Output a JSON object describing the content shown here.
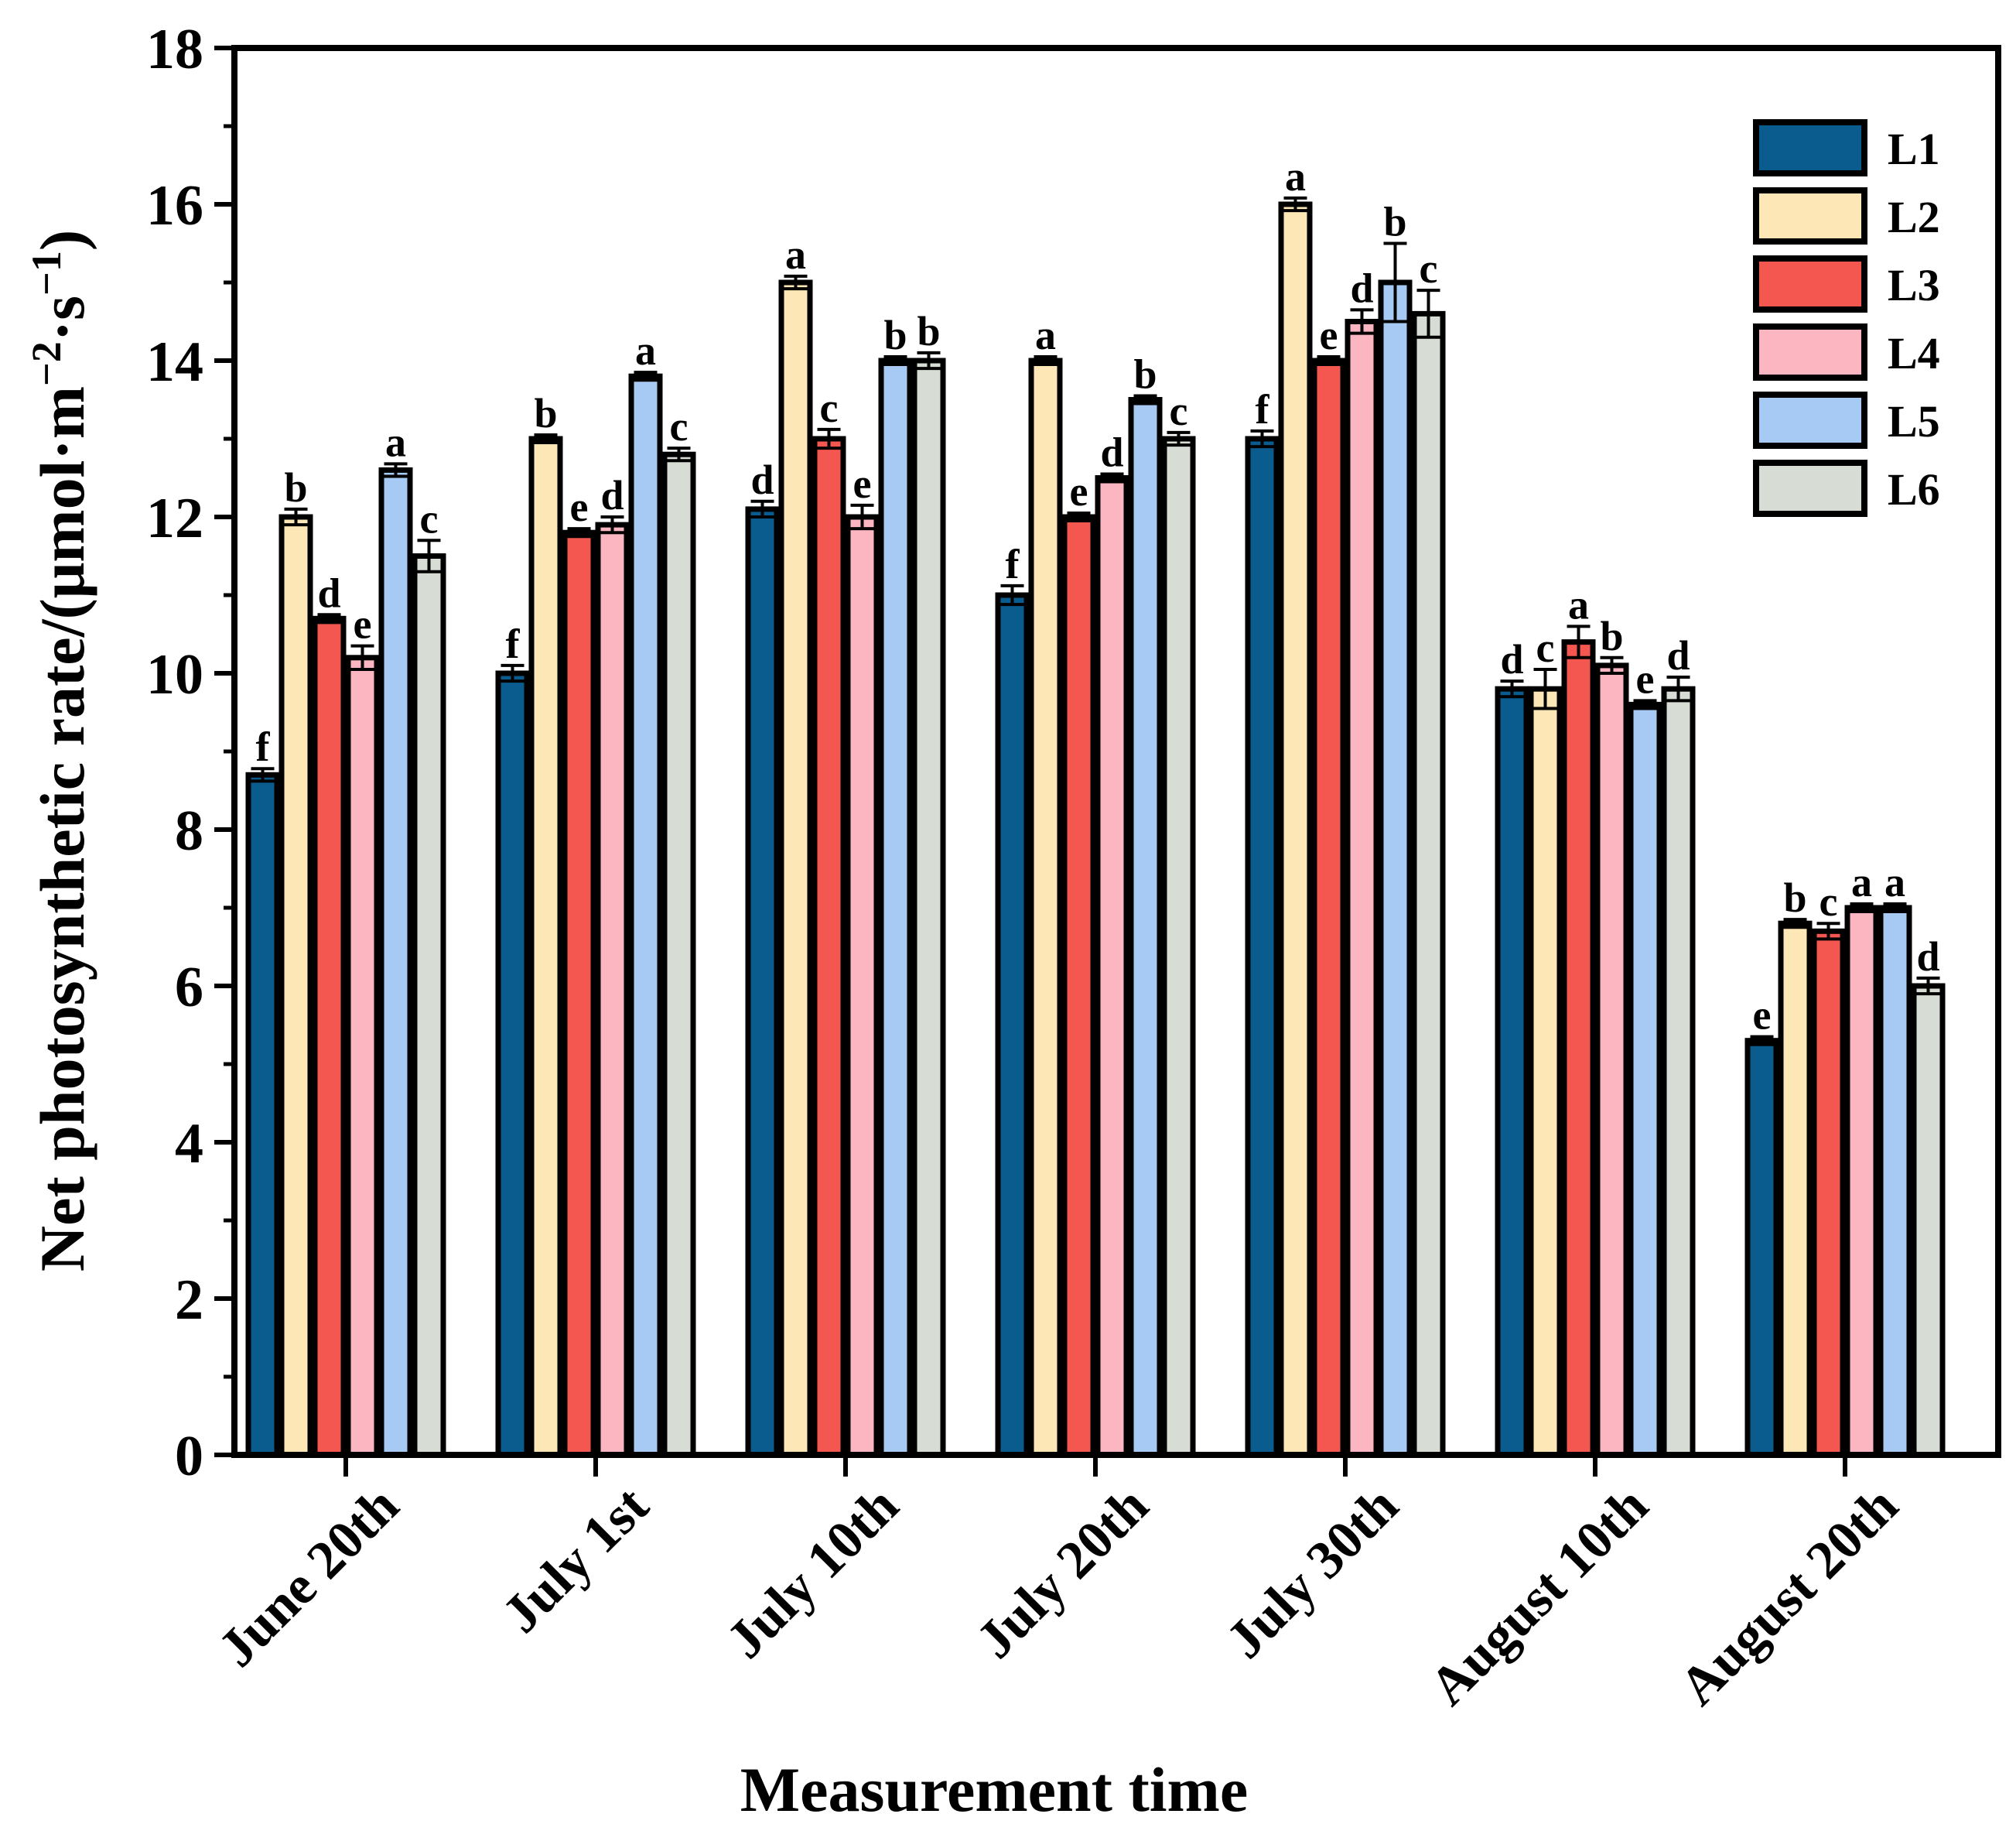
{
  "chart_data": {
    "type": "bar",
    "title": "",
    "xlabel": "Measurement time",
    "ylabel": "Net photosynthetic rate/(μmol·m⁻²·s⁻¹)",
    "ylim": [
      0,
      18
    ],
    "yticks": [
      0,
      2,
      4,
      6,
      8,
      10,
      12,
      14,
      16,
      18
    ],
    "categories": [
      "June 20th",
      "July 1st",
      "July 10th",
      "July 20th",
      "July 30th",
      "August 10th",
      "August 20th"
    ],
    "legend_position": "top-right",
    "series": [
      {
        "name": "L1",
        "color": "#0b5c8e",
        "values": [
          8.7,
          10.0,
          12.1,
          11.0,
          13.0,
          9.8,
          5.3
        ],
        "errors": [
          0.08,
          0.1,
          0.1,
          0.12,
          0.1,
          0.1,
          0.05
        ],
        "letters": [
          "f",
          "f",
          "d",
          "f",
          "f",
          "d",
          "e"
        ]
      },
      {
        "name": "L2",
        "color": "#fde7b6",
        "values": [
          12.0,
          13.0,
          15.0,
          14.0,
          16.0,
          9.8,
          6.8
        ],
        "errors": [
          0.1,
          0.05,
          0.08,
          0.05,
          0.08,
          0.25,
          0.05
        ],
        "letters": [
          "b",
          "b",
          "a",
          "a",
          "a",
          "c",
          "b"
        ]
      },
      {
        "name": "L3",
        "color": "#f4574f",
        "values": [
          10.7,
          11.8,
          13.0,
          12.0,
          14.0,
          10.4,
          6.7
        ],
        "errors": [
          0.05,
          0.05,
          0.12,
          0.05,
          0.05,
          0.2,
          0.1
        ],
        "letters": [
          "d",
          "e",
          "c",
          "e",
          "e",
          "a",
          "c"
        ]
      },
      {
        "name": "L4",
        "color": "#fbb6c1",
        "values": [
          10.2,
          11.9,
          12.0,
          12.5,
          14.5,
          10.1,
          7.0
        ],
        "errors": [
          0.15,
          0.1,
          0.15,
          0.05,
          0.15,
          0.1,
          0.05
        ],
        "letters": [
          "e",
          "d",
          "e",
          "d",
          "d",
          "b",
          "a"
        ]
      },
      {
        "name": "L5",
        "color": "#a7caf5",
        "values": [
          12.6,
          13.8,
          14.0,
          13.5,
          15.0,
          9.6,
          7.0
        ],
        "errors": [
          0.08,
          0.05,
          0.05,
          0.05,
          0.5,
          0.05,
          0.05
        ],
        "letters": [
          "a",
          "a",
          "b",
          "b",
          "b",
          "e",
          "a"
        ]
      },
      {
        "name": "L6",
        "color": "#d7ddd5",
        "values": [
          11.5,
          12.8,
          14.0,
          13.0,
          14.6,
          9.8,
          6.0
        ],
        "errors": [
          0.2,
          0.08,
          0.1,
          0.08,
          0.3,
          0.15,
          0.1
        ],
        "letters": [
          "c",
          "c",
          "b",
          "c",
          "c",
          "d",
          "d"
        ]
      }
    ]
  }
}
